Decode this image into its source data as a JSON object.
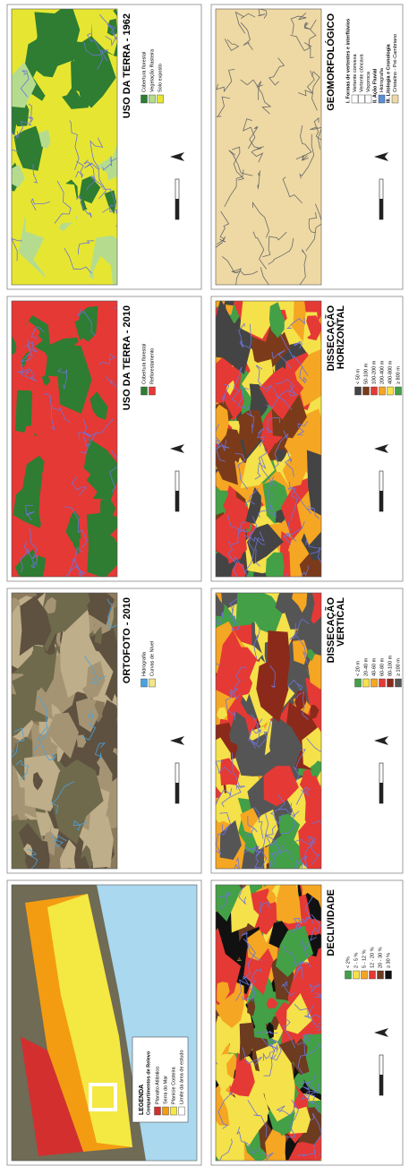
{
  "panels": [
    {
      "title": [
        "USO DA TERRA - 1962"
      ],
      "legend": [
        {
          "label": "Cobertura florestal",
          "color": "#2e7d32"
        },
        {
          "label": "Vegetação Rasteira",
          "color": "#b5dc8e"
        },
        {
          "label": "Solo exposto",
          "color": "#e6e632"
        }
      ]
    },
    {
      "title": [
        "GEOMORFOLÓGICO"
      ],
      "legend": [
        {
          "label": "I. Formas de vertentes e interflúvios"
        },
        {
          "label": "Vertente convexa",
          "color": "#ffffff"
        },
        {
          "label": "Vertente côncava",
          "color": "#ffffff"
        },
        {
          "label": "Voçoroca",
          "color": "#ffffff"
        },
        {
          "label": "II. Ação Fluvial"
        },
        {
          "label": "Hidrografia",
          "color": "#5b8fd6"
        },
        {
          "label": "III. Litologia e Cronologia"
        },
        {
          "label": "Cristalino - Pré-Cambriano",
          "color": "#eed9a4"
        }
      ]
    },
    {
      "title": [
        "USO DA TERRA - 2010"
      ],
      "legend": [
        {
          "label": "Cobertura florestal",
          "color": "#2e7d32"
        },
        {
          "label": "Reflorestamento",
          "color": "#e53935"
        }
      ]
    },
    {
      "title": [
        "DISSECAÇÃO",
        "HORIZONTAL"
      ],
      "legend": [
        {
          "label": "< 50 m",
          "color": "#444444"
        },
        {
          "label": "50-100 m",
          "color": "#7b3b1a"
        },
        {
          "label": "100-200 m",
          "color": "#e53935"
        },
        {
          "label": "200-400 m",
          "color": "#f5a623"
        },
        {
          "label": "400-800 m",
          "color": "#f5e14a"
        },
        {
          "label": "≥ 800 m",
          "color": "#43a047"
        }
      ]
    },
    {
      "title": [
        "ORTOFOTO - 2010"
      ],
      "legend": [
        {
          "label": "Hidrografia",
          "color": "#4aa3df"
        },
        {
          "label": "Curvas de Nível",
          "color": "#f0e68c"
        }
      ]
    },
    {
      "title": [
        "DISSECAÇÃO",
        "VERTICAL"
      ],
      "legend": [
        {
          "label": "< 20 m",
          "color": "#43a047"
        },
        {
          "label": "20-40 m",
          "color": "#f5e14a"
        },
        {
          "label": "40-60 m",
          "color": "#f5a623"
        },
        {
          "label": "60-80 m",
          "color": "#e53935"
        },
        {
          "label": "80-100 m",
          "color": "#8b2a1a"
        },
        {
          "label": "≥ 100 m",
          "color": "#555555"
        }
      ]
    },
    {
      "title": [
        "LEGENDA"
      ],
      "subtitle": "Compartimentos de Relevo",
      "legend": [
        {
          "label": "Planalto Atlântico",
          "color": "#d32f2f"
        },
        {
          "label": "Serra do Mar",
          "color": "#f39c12"
        },
        {
          "label": "Planície Costeira",
          "color": "#f4e842"
        },
        {
          "label": "Limite da área de estudo",
          "color": "#ffffff"
        }
      ]
    },
    {
      "title": [
        "DECLIVIDADE"
      ],
      "legend": [
        {
          "label": "< 2%",
          "color": "#43a047"
        },
        {
          "label": "2 - 5 %",
          "color": "#f5e14a"
        },
        {
          "label": "5 - 12 %",
          "color": "#f5a623"
        },
        {
          "label": "12 - 20 %",
          "color": "#e53935"
        },
        {
          "label": "20 - 30 %",
          "color": "#6d3b1f"
        },
        {
          "label": "≥ 30 %",
          "color": "#111111"
        }
      ]
    }
  ]
}
